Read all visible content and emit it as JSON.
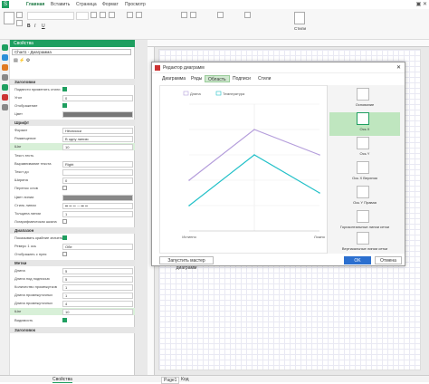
{
  "ribbon": {
    "tabs": [
      "Главная",
      "Вставить",
      "Страница",
      "Формат",
      "Просмотр"
    ],
    "style_label": "Стили"
  },
  "panel": {
    "title": "Свойства",
    "object": "Chart1 - Диаграмма",
    "sections": {
      "title": "Заголовки",
      "font": "Шрифт",
      "range": "Диапазон",
      "labels": "Метки",
      "titles2": "Заголовок"
    },
    "rows": {
      "show_chart_title": "Подвести применять стили",
      "n_label": "Угол",
      "n_value": "0",
      "show_label": "Отображение",
      "color_label": "Цвет",
      "format_label": "Формат",
      "format_value": "Нёспииси",
      "align_label": "Размещение",
      "align_value": "В одну линию",
      "size_label": "Шаг",
      "size_value": "10",
      "text_label": "Текст-тесть",
      "text_align_label": "Выравнивание текста",
      "text_align_value": "Right",
      "text_height_label": "Текст до",
      "width_label": "Ширина",
      "width_value": "0",
      "wrap_label": "Перенос слов",
      "line_color_label": "Цвет линии",
      "line_style_label": "Стиль линии",
      "line_width_label": "Толщина линии",
      "line_width_value": "1",
      "log_label": "Логарифмическая шкала",
      "range_show_label": "Показывать крайние значения",
      "range_axis_label": "Реверс 1 ось",
      "range_axis_value": "Обе",
      "range_zero_label": "Отображать с нуля",
      "len_label": "Длина",
      "len_value": "5",
      "len2_label": "Длина под подписью",
      "len2_value": "5",
      "count_label": "Количество промежутков",
      "count_value": "1",
      "count2_label": "Длина промежуточных",
      "count2_value": "1",
      "between_label": "Длина промежуточных",
      "between_value": "4",
      "step_label": "Шаг",
      "step_value": "10",
      "visible_label": "Видимость"
    }
  },
  "statusbar": {
    "panel_tab": "Свойства",
    "page_tab": "Page1",
    "code_tab": "Код"
  },
  "dialog": {
    "title": "Редактор диаграмм",
    "tabs": [
      "Диаграмма",
      "Ряды",
      "Область",
      "Подписи",
      "Стили"
    ],
    "active_tab": "Область",
    "wizard_button": "Запустить мастер диаграмм",
    "ok_button": "OK",
    "cancel_button": "Отмена",
    "gallery": [
      "Основание",
      "Ось X",
      "Ось Y",
      "Ось X Верхняя",
      "Ось Y Правая",
      "Горизонтальные линии сетки",
      "Вертикальные линии сетки"
    ],
    "selected_gallery": "Ось X"
  },
  "chart_data": {
    "type": "line",
    "x": [
      "Истинно",
      "",
      "Ложно"
    ],
    "series": [
      {
        "name": "Длина",
        "values": [
          4,
          8,
          6
        ],
        "color": "#b49ddb"
      },
      {
        "name": "Температура",
        "values": [
          2,
          6,
          3
        ],
        "color": "#22c0c8"
      }
    ],
    "legend": "top-left"
  },
  "colors": {
    "accent": "#1f9f60"
  }
}
